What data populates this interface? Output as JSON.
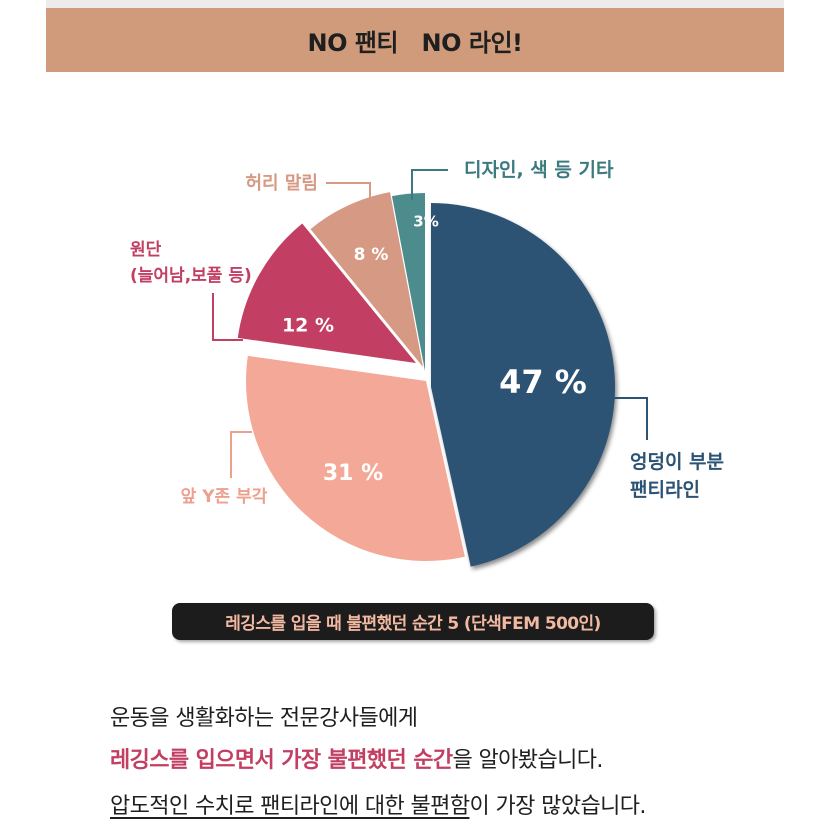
{
  "banner": {
    "text": "NO 팬티   NO 라인!",
    "background": "#cf9b7a"
  },
  "chart_data": {
    "type": "pie",
    "title": "레깅스를 입을 때 불편했던 순간 5 (단색FEM 500인)",
    "slices": [
      {
        "label": "엉덩이 부분 팬티라인",
        "label_lines": [
          "엉덩이 부분",
          "팬티라인"
        ],
        "value": 47,
        "value_label": "47 %",
        "color": "#2c5274",
        "label_color": "#2c5274"
      },
      {
        "label": "앞 Y존 부각",
        "label_lines": [
          "앞 Y존 부각"
        ],
        "value": 31,
        "value_label": "31 %",
        "color": "#f4a898",
        "label_color": "#eda08e"
      },
      {
        "label": "원단 (늘어남,보풀 등)",
        "label_lines": [
          "원단",
          "(늘어남,보풀 등)"
        ],
        "value": 12,
        "value_label": "12 %",
        "color": "#c23f63",
        "label_color": "#c23f63"
      },
      {
        "label": "허리 말림",
        "label_lines": [
          "허리 말림"
        ],
        "value": 8,
        "value_label": "8 %",
        "color": "#d69a84",
        "label_color": "#d69a84"
      },
      {
        "label": "디자인, 색 등 기타",
        "label_lines": [
          "디자인, 색 등 기타"
        ],
        "value": 3,
        "value_label": "3%",
        "color": "#4c8c8c",
        "label_color": "#3d7a80"
      }
    ]
  },
  "description": {
    "line1": "운동을 생활화하는 전문강사들에게",
    "line2_highlight": "레깅스를 입으면서 가장 불편했던 순간",
    "line2_rest": "을 알아봤습니다.",
    "line3_underlined": "압도적인 수치로 팬티라인에 대한 불편함",
    "line3_rest": "이 가장 많았습니다."
  }
}
